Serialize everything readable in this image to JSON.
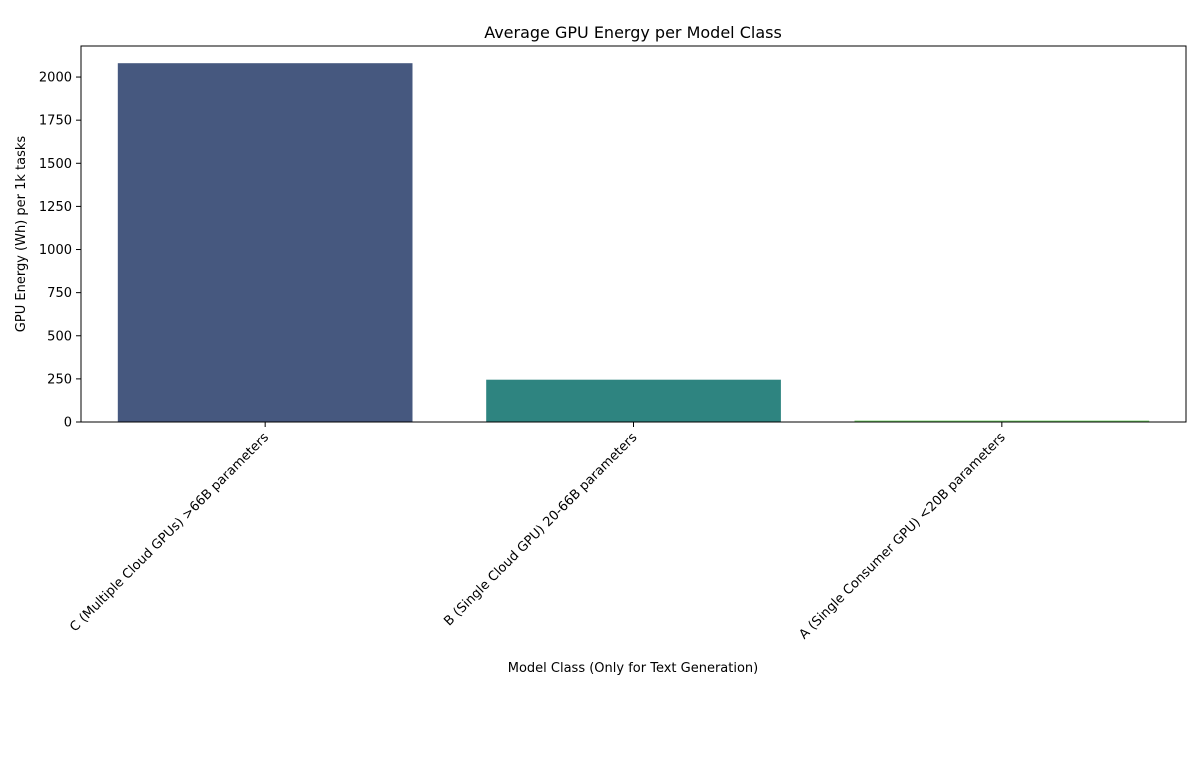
{
  "chart_data": {
    "type": "bar",
    "title": "Average GPU Energy per Model Class",
    "xlabel": "Model Class (Only for Text Generation)",
    "ylabel": "GPU Energy (Wh) per 1k tasks",
    "categories": [
      "C (Multiple Cloud GPUs) >66B parameters",
      "B (Single Cloud GPU) 20-66B parameters",
      "A (Single Consumer GPU) <20B parameters"
    ],
    "values": [
      2080,
      245,
      8
    ],
    "colors": [
      "#46587f",
      "#2e8480",
      "#6fcf64"
    ],
    "ylim": [
      0,
      2180
    ],
    "yticks": [
      0,
      250,
      500,
      750,
      1000,
      1250,
      1500,
      1750,
      2000
    ],
    "grid": false
  }
}
